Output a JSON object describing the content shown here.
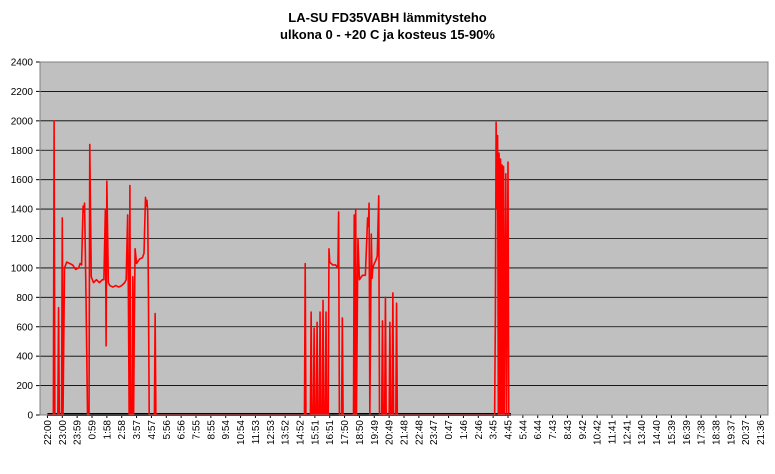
{
  "chart_data": {
    "type": "line",
    "title": "LA-SU FD35VABH lämmitysteho",
    "subtitle": "ulkona 0 - +20 C ja kosteus 15-90%",
    "xlabel": "",
    "ylabel": "",
    "ylim": [
      0,
      2400
    ],
    "yticks": [
      "0",
      "200",
      "400",
      "600",
      "800",
      "1000",
      "1200",
      "1400",
      "1600",
      "1800",
      "2000",
      "2200",
      "2400"
    ],
    "xticks": [
      "22:00",
      "23:00",
      "23:59",
      "0:59",
      "1:58",
      "2:58",
      "3:57",
      "4:57",
      "5:56",
      "6:56",
      "7:55",
      "8:55",
      "9:54",
      "10:54",
      "11:53",
      "12:53",
      "13:52",
      "14:52",
      "15:51",
      "16:51",
      "17:50",
      "18:50",
      "19:49",
      "20:49",
      "21:48",
      "22:48",
      "23:47",
      "0:47",
      "1:46",
      "2:46",
      "3:45",
      "4:45",
      "5:44",
      "6:44",
      "7:43",
      "8:43",
      "9:42",
      "10:42",
      "11:41",
      "12:41",
      "13:40",
      "14:40",
      "15:39",
      "16:39",
      "17:38",
      "18:38",
      "19:37",
      "20:37",
      "21:36"
    ],
    "grid": true,
    "legend": "none",
    "plot_background": "#c0c0c0",
    "series": [
      {
        "color": "#ff0000",
        "points": [
          [
            0,
            0
          ],
          [
            0.4,
            0
          ],
          [
            0.45,
            2000
          ],
          [
            0.5,
            0
          ],
          [
            0.7,
            0
          ],
          [
            0.75,
            730
          ],
          [
            0.8,
            0
          ],
          [
            0.95,
            0
          ],
          [
            1,
            1340
          ],
          [
            1.05,
            0
          ],
          [
            1.15,
            1000
          ],
          [
            1.3,
            1040
          ],
          [
            1.5,
            1030
          ],
          [
            1.7,
            1020
          ],
          [
            1.9,
            990
          ],
          [
            2.1,
            1000
          ],
          [
            2.2,
            1030
          ],
          [
            2.3,
            1020
          ],
          [
            2.4,
            1420
          ],
          [
            2.45,
            1380
          ],
          [
            2.5,
            1440
          ],
          [
            2.6,
            780
          ],
          [
            2.7,
            0
          ],
          [
            2.8,
            0
          ],
          [
            2.85,
            1840
          ],
          [
            2.95,
            940
          ],
          [
            3.1,
            900
          ],
          [
            3.3,
            920
          ],
          [
            3.5,
            900
          ],
          [
            3.7,
            920
          ],
          [
            3.8,
            920
          ],
          [
            3.9,
            1400
          ],
          [
            3.95,
            470
          ],
          [
            4.0,
            1590
          ],
          [
            4.1,
            900
          ],
          [
            4.2,
            880
          ],
          [
            4.4,
            870
          ],
          [
            4.6,
            880
          ],
          [
            4.8,
            870
          ],
          [
            5.0,
            880
          ],
          [
            5.2,
            900
          ],
          [
            5.3,
            920
          ],
          [
            5.4,
            1360
          ],
          [
            5.45,
            800
          ],
          [
            5.5,
            0
          ],
          [
            5.55,
            1560
          ],
          [
            5.6,
            0
          ],
          [
            5.7,
            0
          ],
          [
            5.75,
            940
          ],
          [
            5.8,
            0
          ],
          [
            5.85,
            640
          ],
          [
            5.9,
            1130
          ],
          [
            6.0,
            1030
          ],
          [
            6.2,
            1060
          ],
          [
            6.4,
            1070
          ],
          [
            6.5,
            1100
          ],
          [
            6.6,
            1480
          ],
          [
            6.65,
            1420
          ],
          [
            6.7,
            1460
          ],
          [
            6.75,
            1380
          ],
          [
            6.8,
            800
          ],
          [
            6.85,
            0
          ],
          [
            7.2,
            0
          ],
          [
            7.25,
            690
          ],
          [
            7.3,
            0
          ],
          [
            17.3,
            0
          ],
          [
            17.35,
            1030
          ],
          [
            17.4,
            0
          ],
          [
            17.7,
            0
          ],
          [
            17.75,
            700
          ],
          [
            17.8,
            0
          ],
          [
            17.9,
            0
          ],
          [
            17.95,
            590
          ],
          [
            18.0,
            0
          ],
          [
            18.1,
            0
          ],
          [
            18.15,
            630
          ],
          [
            18.2,
            0
          ],
          [
            18.3,
            0
          ],
          [
            18.35,
            700
          ],
          [
            18.4,
            0
          ],
          [
            18.5,
            0
          ],
          [
            18.55,
            780
          ],
          [
            18.6,
            0
          ],
          [
            18.7,
            0
          ],
          [
            18.75,
            700
          ],
          [
            18.8,
            0
          ],
          [
            18.9,
            0
          ],
          [
            18.95,
            1130
          ],
          [
            19.0,
            1040
          ],
          [
            19.2,
            1020
          ],
          [
            19.4,
            1020
          ],
          [
            19.55,
            1000
          ],
          [
            19.6,
            1380
          ],
          [
            19.65,
            0
          ],
          [
            19.8,
            0
          ],
          [
            19.85,
            660
          ],
          [
            19.9,
            0
          ],
          [
            20.6,
            0
          ],
          [
            20.65,
            1360
          ],
          [
            20.7,
            0
          ],
          [
            20.75,
            1400
          ],
          [
            20.8,
            0
          ],
          [
            20.9,
            1200
          ],
          [
            21.0,
            920
          ],
          [
            21.2,
            950
          ],
          [
            21.4,
            950
          ],
          [
            21.55,
            1340
          ],
          [
            21.6,
            1280
          ],
          [
            21.65,
            1440
          ],
          [
            21.7,
            0
          ],
          [
            21.8,
            1230
          ],
          [
            21.85,
            930
          ],
          [
            21.9,
            1000
          ],
          [
            22.0,
            1030
          ],
          [
            22.1,
            1050
          ],
          [
            22.2,
            1080
          ],
          [
            22.3,
            1490
          ],
          [
            22.35,
            0
          ],
          [
            22.5,
            0
          ],
          [
            22.55,
            640
          ],
          [
            22.6,
            0
          ],
          [
            22.7,
            0
          ],
          [
            22.75,
            800
          ],
          [
            22.8,
            0
          ],
          [
            23.0,
            0
          ],
          [
            23.05,
            630
          ],
          [
            23.1,
            0
          ],
          [
            23.2,
            0
          ],
          [
            23.25,
            830
          ],
          [
            23.3,
            0
          ],
          [
            23.45,
            0
          ],
          [
            23.5,
            760
          ],
          [
            23.55,
            0
          ],
          [
            30.1,
            0
          ],
          [
            30.15,
            660
          ],
          [
            30.2,
            1990
          ],
          [
            30.25,
            1400
          ],
          [
            30.3,
            1900
          ],
          [
            30.35,
            0
          ],
          [
            30.4,
            1780
          ],
          [
            30.45,
            0
          ],
          [
            30.5,
            1740
          ],
          [
            30.55,
            0
          ],
          [
            30.6,
            1700
          ],
          [
            30.65,
            0
          ],
          [
            30.7,
            1690
          ],
          [
            30.75,
            0
          ],
          [
            30.85,
            1640
          ],
          [
            30.9,
            0
          ],
          [
            31.0,
            1720
          ],
          [
            31.05,
            0
          ],
          [
            31.2,
            0
          ]
        ]
      }
    ]
  }
}
